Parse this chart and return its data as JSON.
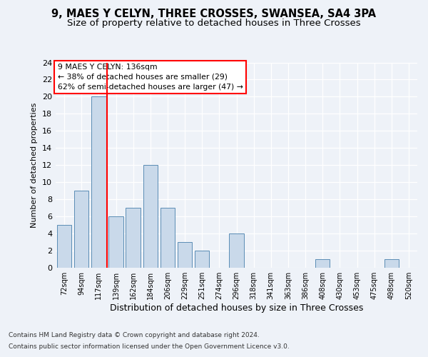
{
  "title1": "9, MAES Y CELYN, THREE CROSSES, SWANSEA, SA4 3PA",
  "title2": "Size of property relative to detached houses in Three Crosses",
  "xlabel": "Distribution of detached houses by size in Three Crosses",
  "ylabel": "Number of detached properties",
  "bins": [
    "72sqm",
    "94sqm",
    "117sqm",
    "139sqm",
    "162sqm",
    "184sqm",
    "206sqm",
    "229sqm",
    "251sqm",
    "274sqm",
    "296sqm",
    "318sqm",
    "341sqm",
    "363sqm",
    "386sqm",
    "408sqm",
    "430sqm",
    "453sqm",
    "475sqm",
    "498sqm",
    "520sqm"
  ],
  "values": [
    5,
    9,
    20,
    6,
    7,
    12,
    7,
    3,
    2,
    0,
    4,
    0,
    0,
    0,
    0,
    1,
    0,
    0,
    0,
    1,
    0
  ],
  "bar_color": "#c9d9ea",
  "bar_edge_color": "#5a8db5",
  "red_line_index": 3,
  "annotation_line1": "9 MAES Y CELYN: 136sqm",
  "annotation_line2": "← 38% of detached houses are smaller (29)",
  "annotation_line3": "62% of semi-detached houses are larger (47) →",
  "ylim": [
    0,
    24
  ],
  "yticks": [
    0,
    2,
    4,
    6,
    8,
    10,
    12,
    14,
    16,
    18,
    20,
    22,
    24
  ],
  "footer1": "Contains HM Land Registry data © Crown copyright and database right 2024.",
  "footer2": "Contains public sector information licensed under the Open Government Licence v3.0.",
  "bg_color": "#eef2f8",
  "grid_color": "#ffffff",
  "title1_fontsize": 10.5,
  "title2_fontsize": 9.5
}
